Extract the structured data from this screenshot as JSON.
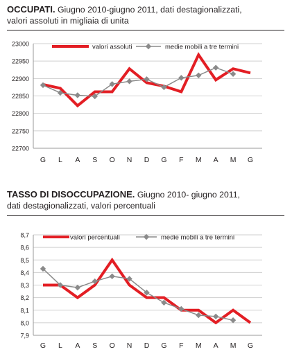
{
  "charts": [
    {
      "title_bold": "OCCUPATI.",
      "title_rest": " Giugno 2010-giugno 2011, dati destagionalizzati,",
      "title_line2": "valori assoluti in migliaia di unita",
      "chart_data": {
        "type": "line",
        "categories": [
          "G",
          "L",
          "A",
          "S",
          "O",
          "N",
          "D",
          "G",
          "F",
          "M",
          "A",
          "M",
          "G"
        ],
        "ylim": [
          22700,
          23000
        ],
        "yticks": [
          "22700",
          "22750",
          "22800",
          "22850",
          "22900",
          "22950",
          "23000"
        ],
        "grid": true,
        "legend_position": "top",
        "series": [
          {
            "name": "valori assoluti",
            "color": "#e31e24",
            "marker": "none",
            "values": [
              22883,
              22872,
              22822,
              22862,
              22862,
              22928,
              22888,
              22878,
              22862,
              22968,
              22896,
              22928,
              22916
            ]
          },
          {
            "name": "medie mobili a tre termini",
            "color": "#8a8a8a",
            "marker": "diamond",
            "values": [
              22881,
              22859,
              22852,
              22849,
              22884,
              22892,
              22898,
              22875,
              22902,
              22909,
              22931,
              22913,
              null
            ]
          }
        ]
      }
    },
    {
      "title_bold": "TASSO DI DISOCCUPAZIONE.",
      "title_rest": " Giugno 2010- giugno 2011,",
      "title_line2": "dati destagionalizzati, valori percentuali",
      "chart_data": {
        "type": "line",
        "categories": [
          "G",
          "L",
          "A",
          "S",
          "O",
          "N",
          "D",
          "G",
          "F",
          "M",
          "A",
          "M",
          "G"
        ],
        "ylim": [
          7.9,
          8.7
        ],
        "yticks": [
          "7,9",
          "8,0",
          "8,1",
          "8,2",
          "8,3",
          "8,4",
          "8,5",
          "8,6",
          "8,7"
        ],
        "grid": true,
        "legend_position": "top",
        "series": [
          {
            "name": "valori percentuali",
            "color": "#e31e24",
            "marker": "none",
            "values": [
              8.3,
              8.3,
              8.2,
              8.3,
              8.5,
              8.3,
              8.2,
              8.2,
              8.1,
              8.1,
              8.0,
              8.1,
              8.0
            ]
          },
          {
            "name": "medie mobili a tre termini",
            "color": "#8a8a8a",
            "marker": "diamond",
            "values": [
              8.43,
              8.3,
              8.28,
              8.33,
              8.37,
              8.35,
              8.24,
              8.16,
              8.11,
              8.06,
              8.05,
              8.02,
              null
            ]
          }
        ]
      }
    }
  ]
}
